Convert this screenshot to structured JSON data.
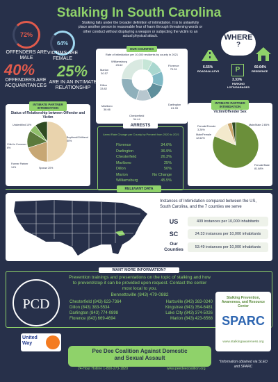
{
  "title": "Stalking In South Carolina",
  "intro": "Stalking falls under the broader definition of intimidation. It is to unlawfully place another person in reasonable fear of harm through threatening words or other conduct without displaying a weapon or subjecting the victim to an actual physical attack.",
  "stats": {
    "offenders_male_pct": "72%",
    "offenders_male_label": "OFFENDERS ARE MALE",
    "victims_female_pct": "64%",
    "victims_female_label": "VICTIMS ARE FEMALE",
    "acquaintances_pct": "40%",
    "acquaintances_label": "OFFENDERS ARE ACQUAINTANCES",
    "intimate_pct": "25%",
    "intimate_label": "ARE IN AN INTIMATE RELATIONSHIP"
  },
  "our_counties": {
    "header": "OUR COUNTIES",
    "chart_title": "Rate of intimidation per 10,000 residents by county in 2021",
    "labels": [
      {
        "name": "Williamsburg",
        "value": "23.62"
      },
      {
        "name": "Marion",
        "value": "30.57"
      },
      {
        "name": "Dillon",
        "value": "33.82"
      },
      {
        "name": "Marlboro",
        "value": "38.66"
      },
      {
        "name": "Chesterfield",
        "value": "34.44"
      },
      {
        "name": "Darlington",
        "value": "61.99"
      },
      {
        "name": "Florence",
        "value": "70.51"
      }
    ]
  },
  "where": {
    "where_label": "WHERE",
    "where_q": "?",
    "roads_pct": "6.55%",
    "roads_label": "ROADS/ALLEYS",
    "residence_pct": "60.64%",
    "residence_label": "RESIDENCE",
    "parking_pct": "3.33%",
    "parking_label": "PARKING LOTS/GARAGES",
    "parking_icon": "P"
  },
  "ipv_relationship": {
    "header": "INTIMATE PARTNER INTIMIDATION",
    "title": "Status of Relationship between Offender and Victim",
    "slices": [
      {
        "label": "Boyfriend/Girlfriend",
        "value": 50,
        "text": "Boyfriend/Girlfriend 50%",
        "color": "#e9d3ad"
      },
      {
        "label": "Spouse",
        "value": 20,
        "text": "Spouse 20%",
        "color": "#c7a774"
      },
      {
        "label": "Former Partner",
        "value": 14,
        "text": "Former Partner 14%",
        "color": "#5b7a3c"
      },
      {
        "label": "Child in Common",
        "value": 6,
        "text": "Child in Common 6%",
        "color": "#8fbf6a"
      },
      {
        "label": "Unidentified",
        "value": 10,
        "text": "Unidentified 10%",
        "color": "#2f4a22"
      }
    ]
  },
  "arrests": {
    "header": "ARRESTS",
    "subtitle": "Arrest Rate Change per County by Percent from 2020 to 2021",
    "rows": [
      {
        "county": "Florence",
        "value": "34.6%"
      },
      {
        "county": "Darlington",
        "value": "36.9%"
      },
      {
        "county": "Chesterfield",
        "value": "26.3%"
      },
      {
        "county": "Marlboro",
        "value": "25%"
      },
      {
        "county": "Dillon",
        "value": "50%"
      },
      {
        "county": "Marion",
        "value": "No Change"
      },
      {
        "county": "Williamsburg",
        "value": "45.5%"
      }
    ]
  },
  "ipv_sex": {
    "header": "INTIMATE PARTNER INTIMIDATION",
    "title": "Victim/Offender Sex",
    "slices": [
      {
        "label": "Female/Male",
        "value": 81.68,
        "text": "Female/Male 81.68%",
        "color": "#6b8f3a"
      },
      {
        "label": "Male/Female",
        "value": 12.62,
        "text": "Male/Female 12.62%",
        "color": "#f3e9cc"
      },
      {
        "label": "Female/Female",
        "value": 3.26,
        "text": "Female/Female 3.26%",
        "color": "#c9a56b"
      },
      {
        "label": "Male/Male",
        "value": 2.65,
        "text": "Male/Male 2.65%",
        "color": "#2f4a22"
      }
    ]
  },
  "relevant": {
    "header": "RELEVANT DATA",
    "text": "Instances of Intimidation compared between the US, South Carolina, and the 7 counties we serve",
    "rows": [
      {
        "label": "US",
        "value": "409 instances per 10,000 inhabitants"
      },
      {
        "label": "SC",
        "value": "24.33 instances per 10,000 inhabitants"
      },
      {
        "label": "Our Counties",
        "value": "53.49 instances per 10,000 inhabitants"
      }
    ]
  },
  "more_info": {
    "header": "WANT MORE INFORMATION?",
    "text": "Prevention trainings and presentations on the topic of stalking and how to prevent/stop it can be provided upon request. Contact the center most local to you.",
    "bennettsville": "Bennettsville (843) 479-0882",
    "contacts_left": [
      "Chesterfield (843) 623-7364",
      "Dillon (843) 383-5534",
      "Darlington (843) 774-0898",
      "Florence (843) 669-4694"
    ],
    "contacts_right": [
      "Hartsville (843) 383-0240",
      "Kingstree (843) 354-6481",
      "Lake City (843) 374-5026",
      "Marion (843) 423-6568"
    ]
  },
  "footer": {
    "org": "Pee Dee Coalition Against Domestic and Sexual Assault",
    "hotline": "24-Hour Hotline   1-800-273-1820",
    "website": "www.peedeecoalition.org",
    "note": "*Information obtained via SLED and SPARC",
    "sparc_name": "Stalking Prevention, Awareness, and Resource Center",
    "sparc_logo": "SPARC",
    "sparc_url": "www.stalkingawareness.org",
    "pdc_logo": "PCD",
    "united_way": "United Way"
  },
  "colors": {
    "bg": "#27304a",
    "accent": "#8fd26a",
    "donut": [
      "#c6e6d7",
      "#a9d7cf",
      "#7fb9c5",
      "#5f8f9c",
      "#b7c7cf",
      "#8fb0bb",
      "#d9e9e1"
    ]
  }
}
